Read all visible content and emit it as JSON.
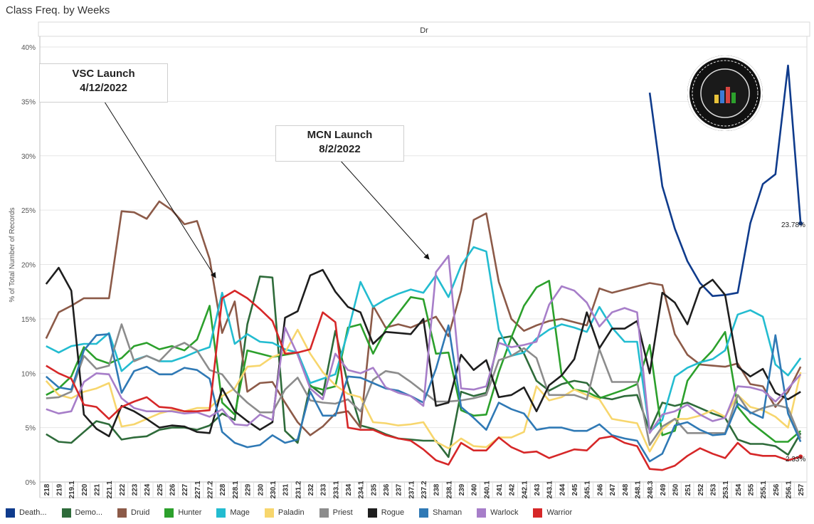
{
  "title": "Class Freq. by Weeks",
  "panel_label": "Dr",
  "annotations": [
    {
      "line1": "VSC Launch",
      "line2": "4/12/2022"
    },
    {
      "line1": "MCN Launch",
      "line2": "8/2/2022"
    }
  ],
  "end_labels": {
    "death_knight": "23.78%",
    "warrior": "2.33%"
  },
  "chart_data": {
    "type": "line",
    "ylabel": "% of Total Number of Records",
    "ylim": [
      0,
      40
    ],
    "yticks": [
      "0%",
      "5%",
      "10%",
      "15%",
      "20%",
      "25%",
      "30%",
      "35%",
      "40%"
    ],
    "grid": true,
    "legend_position": "bottom",
    "categories": [
      "218",
      "219",
      "219.1",
      "220",
      "221",
      "221.1",
      "222",
      "223",
      "224",
      "225",
      "226",
      "227",
      "227.1",
      "227.2",
      "228",
      "228.1",
      "229",
      "230",
      "230.1",
      "231",
      "231.2",
      "232",
      "233",
      "233.1",
      "234",
      "234.1",
      "235",
      "236",
      "237",
      "237.1",
      "237.2",
      "238",
      "238.1",
      "239",
      "240",
      "240.1",
      "241",
      "242",
      "242.1",
      "243",
      "243.1",
      "244",
      "245",
      "245.1",
      "246",
      "247",
      "248",
      "248.1",
      "248.3",
      "249",
      "250",
      "251",
      "252",
      "253",
      "253.1",
      "254",
      "255",
      "255.1",
      "256",
      "256.1",
      "257"
    ],
    "series": [
      {
        "name": "Death...",
        "color": "#0f3b8c",
        "values": [
          null,
          null,
          null,
          null,
          null,
          null,
          null,
          null,
          null,
          null,
          null,
          null,
          null,
          null,
          null,
          null,
          null,
          null,
          null,
          null,
          null,
          null,
          null,
          null,
          null,
          null,
          null,
          null,
          null,
          null,
          null,
          null,
          null,
          null,
          null,
          null,
          null,
          null,
          null,
          null,
          null,
          null,
          null,
          null,
          null,
          null,
          null,
          null,
          35.8,
          27.2,
          23.3,
          20.3,
          18.3,
          17.1,
          17.2,
          17.4,
          23.8,
          27.4,
          28.3,
          38.3,
          23.78
        ]
      },
      {
        "name": "Demo...",
        "color": "#2e6b3a",
        "values": [
          4.4,
          3.7,
          3.6,
          4.6,
          5.6,
          5.3,
          3.9,
          4.1,
          4.2,
          4.8,
          5.0,
          5.0,
          4.8,
          5.2,
          6.3,
          5.7,
          14.5,
          18.9,
          18.8,
          4.7,
          3.6,
          8.9,
          8.0,
          13.9,
          9.0,
          5.2,
          4.9,
          4.4,
          4.0,
          3.9,
          3.8,
          3.8,
          2.3,
          8.3,
          7.9,
          8.2,
          13.2,
          13.4,
          11.8,
          9.3,
          8.4,
          9.0,
          9.3,
          9.1,
          7.8,
          7.6,
          7.9,
          8.0,
          4.7,
          7.3,
          7.0,
          7.3,
          6.8,
          6.3,
          5.9,
          3.9,
          3.5,
          3.5,
          3.3,
          2.5,
          4.5
        ]
      },
      {
        "name": "Druid",
        "color": "#8c5a48",
        "values": [
          13.2,
          15.6,
          16.2,
          16.9,
          16.9,
          16.9,
          24.9,
          24.8,
          24.2,
          25.8,
          25.0,
          23.7,
          24.0,
          20.5,
          13.7,
          16.6,
          8.3,
          9.1,
          9.2,
          7.3,
          5.5,
          4.3,
          5.1,
          6.3,
          6.5,
          5.0,
          16.2,
          14.2,
          14.5,
          14.2,
          14.7,
          15.2,
          13.4,
          17.6,
          24.1,
          24.7,
          18.4,
          15.0,
          13.9,
          14.4,
          14.8,
          15.0,
          14.7,
          14.4,
          17.8,
          17.4,
          17.7,
          18.0,
          18.3,
          18.1,
          13.6,
          11.7,
          10.8,
          10.7,
          10.6,
          10.9,
          9.0,
          8.8,
          6.9,
          8.3,
          10.6
        ]
      },
      {
        "name": "Hunter",
        "color": "#2ca02c",
        "values": [
          8.0,
          8.6,
          9.7,
          12.4,
          11.3,
          10.9,
          11.4,
          12.5,
          12.8,
          12.2,
          12.5,
          12.1,
          13.1,
          16.2,
          7.3,
          6.2,
          12.1,
          11.8,
          11.5,
          11.7,
          11.9,
          8.8,
          8.5,
          8.8,
          14.2,
          14.5,
          11.8,
          14.0,
          15.5,
          17.0,
          16.8,
          11.8,
          11.9,
          6.6,
          6.1,
          6.2,
          10.1,
          13.3,
          16.2,
          17.9,
          18.5,
          9.8,
          8.5,
          8.3,
          7.7,
          8.1,
          8.5,
          9.0,
          12.6,
          4.3,
          4.7,
          9.3,
          10.9,
          12.1,
          13.8,
          6.9,
          5.5,
          4.6,
          3.7,
          3.7,
          4.7
        ]
      },
      {
        "name": "Mage",
        "color": "#23bcd0",
        "values": [
          12.5,
          11.9,
          12.5,
          12.7,
          12.7,
          13.7,
          10.2,
          11.2,
          11.6,
          11.1,
          11.1,
          11.5,
          12.0,
          12.4,
          17.4,
          12.7,
          13.6,
          12.9,
          12.8,
          12.2,
          11.9,
          9.1,
          9.5,
          9.9,
          13.8,
          18.4,
          16.1,
          16.8,
          17.3,
          17.7,
          17.4,
          19.0,
          17.0,
          19.9,
          21.6,
          21.2,
          14.0,
          11.6,
          11.9,
          13.2,
          14.0,
          14.5,
          14.2,
          13.8,
          16.1,
          14.2,
          12.9,
          12.9,
          4.6,
          5.7,
          9.7,
          10.5,
          11.0,
          11.3,
          12.1,
          15.4,
          15.8,
          15.2,
          10.8,
          9.8,
          11.4
        ]
      },
      {
        "name": "Paladin",
        "color": "#f7d66d",
        "values": [
          9.3,
          8.0,
          7.7,
          8.3,
          8.6,
          9.1,
          5.1,
          5.3,
          5.8,
          6.3,
          6.6,
          6.5,
          6.8,
          6.8,
          7.9,
          8.6,
          10.6,
          10.7,
          11.5,
          11.9,
          14.0,
          11.8,
          10.1,
          8.9,
          8.1,
          7.8,
          5.5,
          5.4,
          5.2,
          5.3,
          5.5,
          3.7,
          3.1,
          4.0,
          3.3,
          3.2,
          4.1,
          4.1,
          4.6,
          8.8,
          7.5,
          7.8,
          8.5,
          8.0,
          7.6,
          5.8,
          5.6,
          5.4,
          2.8,
          4.8,
          5.8,
          5.8,
          6.1,
          6.6,
          6.0,
          8.0,
          6.9,
          6.6,
          6.0,
          5.0,
          10.1
        ]
      },
      {
        "name": "Priest",
        "color": "#8c8c8c",
        "values": [
          7.7,
          7.8,
          8.3,
          11.6,
          10.4,
          10.7,
          14.5,
          11.1,
          11.6,
          11.1,
          12.3,
          12.8,
          12.1,
          10.3,
          9.9,
          8.4,
          7.3,
          6.4,
          6.4,
          8.5,
          9.6,
          7.5,
          7.3,
          7.2,
          7.6,
          6.5,
          9.4,
          10.2,
          10.0,
          9.2,
          8.3,
          7.4,
          7.4,
          7.5,
          7.7,
          8.0,
          11.2,
          11.6,
          12.3,
          11.4,
          8.0,
          8.0,
          8.0,
          7.6,
          12.2,
          9.2,
          9.2,
          9.2,
          3.4,
          5.1,
          5.8,
          4.5,
          4.5,
          4.5,
          4.5,
          8.0,
          6.3,
          6.8,
          7.1,
          6.8,
          4.0
        ]
      },
      {
        "name": "Rogue",
        "color": "#1e1e1e",
        "values": [
          18.2,
          19.7,
          17.6,
          6.2,
          4.9,
          4.2,
          7.0,
          6.5,
          5.8,
          5.0,
          5.2,
          5.1,
          4.6,
          4.5,
          8.6,
          6.5,
          5.6,
          4.8,
          5.5,
          15.1,
          15.7,
          19.0,
          19.5,
          17.5,
          16.1,
          15.6,
          12.7,
          13.8,
          13.7,
          13.6,
          15.0,
          7.0,
          7.3,
          11.7,
          10.3,
          11.2,
          7.8,
          8.0,
          8.7,
          6.5,
          8.9,
          9.8,
          11.3,
          15.6,
          12.3,
          14.1,
          14.1,
          14.8,
          10.0,
          17.4,
          16.5,
          14.5,
          17.8,
          18.6,
          17.2,
          10.6,
          9.7,
          10.4,
          8.2,
          7.6,
          8.3
        ]
      },
      {
        "name": "Shaman",
        "color": "#2f79b5",
        "values": [
          9.7,
          8.7,
          8.5,
          12.1,
          13.5,
          13.6,
          8.2,
          10.2,
          10.6,
          9.9,
          9.9,
          10.5,
          10.3,
          9.5,
          4.6,
          3.6,
          3.2,
          3.4,
          4.3,
          3.6,
          3.9,
          8.3,
          6.1,
          6.1,
          9.7,
          9.6,
          9.1,
          8.6,
          8.4,
          7.9,
          7.3,
          10.4,
          14.4,
          6.9,
          5.9,
          4.8,
          7.3,
          6.7,
          6.3,
          4.8,
          5.0,
          5.0,
          4.7,
          4.7,
          5.3,
          4.3,
          4.0,
          3.8,
          1.9,
          2.6,
          5.2,
          5.5,
          4.8,
          4.3,
          4.4,
          7.2,
          6.4,
          5.9,
          13.5,
          6.3,
          3.7
        ]
      },
      {
        "name": "Warlock",
        "color": "#a77ec9",
        "values": [
          6.7,
          6.3,
          6.5,
          9.2,
          10.0,
          9.9,
          7.7,
          6.8,
          6.5,
          6.5,
          6.5,
          6.3,
          6.4,
          6.0,
          6.7,
          5.3,
          5.2,
          6.2,
          5.7,
          14.2,
          11.7,
          8.6,
          7.6,
          11.8,
          10.3,
          10.0,
          10.5,
          8.7,
          8.2,
          7.9,
          7.0,
          19.3,
          20.8,
          8.6,
          8.5,
          8.8,
          12.8,
          12.4,
          12.6,
          12.9,
          16.3,
          18.0,
          17.6,
          16.5,
          14.3,
          15.6,
          16.0,
          15.6,
          4.5,
          6.2,
          6.5,
          7.1,
          6.2,
          5.6,
          5.9,
          8.8,
          8.7,
          8.4,
          7.4,
          8.6,
          9.9
        ]
      },
      {
        "name": "Warrior",
        "color": "#d62728",
        "values": [
          10.7,
          10.0,
          9.5,
          7.1,
          6.9,
          5.8,
          6.9,
          7.4,
          7.8,
          6.9,
          6.8,
          6.5,
          6.5,
          6.6,
          16.9,
          17.6,
          16.9,
          15.9,
          14.8,
          11.8,
          11.9,
          12.2,
          15.6,
          14.7,
          5.0,
          4.8,
          4.8,
          4.3,
          4.0,
          3.8,
          3.0,
          2.0,
          1.6,
          3.6,
          2.9,
          2.9,
          4.1,
          3.2,
          2.7,
          2.8,
          2.2,
          2.6,
          3.0,
          2.9,
          4.0,
          4.2,
          3.6,
          3.3,
          1.2,
          1.1,
          1.5,
          2.4,
          3.1,
          2.6,
          2.2,
          3.6,
          2.6,
          2.4,
          2.4,
          2.0,
          2.33
        ]
      }
    ]
  }
}
